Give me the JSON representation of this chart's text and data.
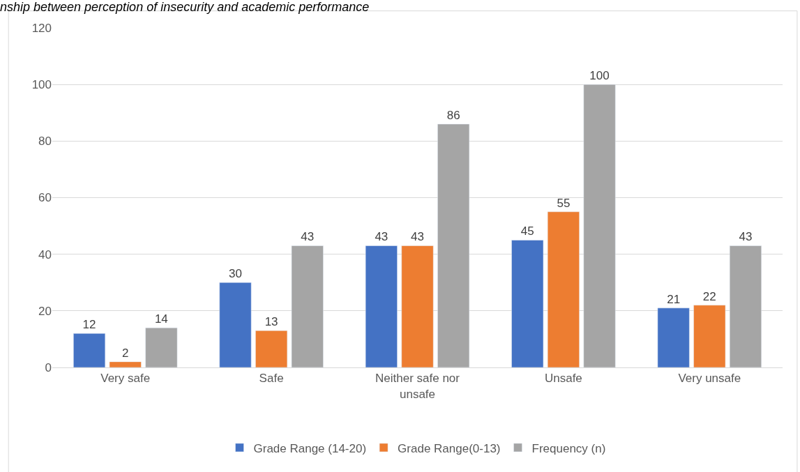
{
  "chart_data": {
    "type": "bar",
    "title": "nship between perception of insecurity and academic performance",
    "categories": [
      "Very safe",
      "Safe",
      "Neither safe nor unsafe",
      "Unsafe",
      "Very unsafe"
    ],
    "series": [
      {
        "name": "Grade Range (14-20)",
        "color": "#4472c4",
        "values": [
          12,
          30,
          43,
          45,
          21
        ]
      },
      {
        "name": "Grade Range(0-13)",
        "color": "#ed7d31",
        "values": [
          2,
          13,
          43,
          55,
          22
        ]
      },
      {
        "name": "Frequency (n)",
        "color": "#a5a5a5",
        "values": [
          14,
          43,
          86,
          100,
          43
        ]
      }
    ],
    "ylim": [
      0,
      120
    ],
    "yticks": [
      0,
      20,
      40,
      60,
      80,
      100,
      120
    ],
    "grid": "y",
    "legend": "bottom",
    "data_labels": true
  }
}
